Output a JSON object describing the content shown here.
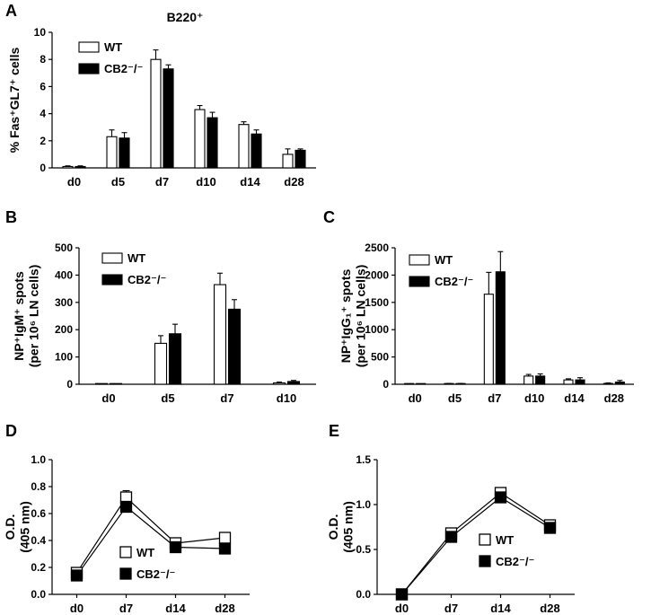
{
  "figure": {
    "panels": [
      "A",
      "B",
      "C",
      "D",
      "E"
    ]
  },
  "chart_data": [
    {
      "id": "A",
      "type": "bar",
      "title": "B220⁺",
      "ylabel": "% Fas⁺GL7⁺ cells",
      "xlabel": "",
      "categories": [
        "d0",
        "d5",
        "d7",
        "d10",
        "d14",
        "d28"
      ],
      "ylim": [
        0,
        10
      ],
      "yticks": [
        0,
        2,
        4,
        6,
        8,
        10
      ],
      "grid": false,
      "legend_position": "top-left",
      "series": [
        {
          "name": "WT",
          "fill": "#ffffff",
          "values": [
            0.1,
            2.3,
            8.0,
            4.3,
            3.2,
            1.0
          ],
          "errors": [
            0.05,
            0.5,
            0.7,
            0.3,
            0.2,
            0.4
          ]
        },
        {
          "name": "CB2⁻/⁻",
          "fill": "#000000",
          "values": [
            0.1,
            2.2,
            7.3,
            3.7,
            2.5,
            1.3
          ],
          "errors": [
            0.05,
            0.4,
            0.3,
            0.4,
            0.3,
            0.1
          ]
        }
      ]
    },
    {
      "id": "B",
      "type": "bar",
      "title": "",
      "ylabel": "NP⁺IgM⁺ spots (per 10⁶ LN cells)",
      "xlabel": "",
      "categories": [
        "d0",
        "d5",
        "d7",
        "d10"
      ],
      "ylim": [
        0,
        500
      ],
      "yticks": [
        0,
        100,
        200,
        300,
        400,
        500
      ],
      "grid": false,
      "legend_position": "top-left",
      "series": [
        {
          "name": "WT",
          "fill": "#ffffff",
          "values": [
            0,
            150,
            365,
            5
          ],
          "errors": [
            0,
            28,
            42,
            3
          ]
        },
        {
          "name": "CB2⁻/⁻",
          "fill": "#000000",
          "values": [
            0,
            185,
            275,
            10
          ],
          "errors": [
            0,
            35,
            35,
            4
          ]
        }
      ]
    },
    {
      "id": "C",
      "type": "bar",
      "title": "",
      "ylabel": "NP⁺IgG₁⁺ spots (per 10⁶ LN cells)",
      "xlabel": "",
      "categories": [
        "d0",
        "d5",
        "d7",
        "d10",
        "d14",
        "d28"
      ],
      "ylim": [
        0,
        2500
      ],
      "yticks": [
        0,
        500,
        1000,
        1500,
        2000,
        2500
      ],
      "grid": false,
      "legend_position": "top-left",
      "series": [
        {
          "name": "WT",
          "fill": "#ffffff",
          "values": [
            0,
            10,
            1650,
            150,
            80,
            15
          ],
          "errors": [
            0,
            5,
            400,
            30,
            20,
            10
          ]
        },
        {
          "name": "CB2⁻/⁻",
          "fill": "#000000",
          "values": [
            0,
            10,
            2060,
            150,
            80,
            40
          ],
          "errors": [
            0,
            5,
            370,
            40,
            40,
            30
          ]
        }
      ]
    },
    {
      "id": "D",
      "type": "line",
      "title": "",
      "ylabel": "O.D. (405 nm)",
      "xlabel": "",
      "categories": [
        "d0",
        "d7",
        "d14",
        "d28"
      ],
      "ylim": [
        0,
        1.0
      ],
      "yticks": [
        "0.0",
        "0.2",
        "0.4",
        "0.6",
        "0.8",
        "1.0"
      ],
      "grid": false,
      "legend_position": "bottom-center",
      "series": [
        {
          "name": "WT",
          "marker": "open-square",
          "values": [
            0.16,
            0.72,
            0.38,
            0.42
          ],
          "errors": [
            0.02,
            0.05,
            0.03,
            0.03
          ]
        },
        {
          "name": "CB2⁻/⁻",
          "marker": "filled-square",
          "values": [
            0.14,
            0.65,
            0.35,
            0.34
          ],
          "errors": [
            0.02,
            0.03,
            0.02,
            0.02
          ]
        }
      ]
    },
    {
      "id": "E",
      "type": "line",
      "title": "",
      "ylabel": "O.D. (405 nm)",
      "xlabel": "",
      "categories": [
        "d0",
        "d7",
        "d14",
        "d28"
      ],
      "ylim": [
        0,
        1.5
      ],
      "yticks": [
        "0.0",
        "0.5",
        "1.0",
        "1.5"
      ],
      "grid": false,
      "legend_position": "bottom-center",
      "series": [
        {
          "name": "WT",
          "marker": "open-square",
          "values": [
            0.0,
            0.68,
            1.13,
            0.77
          ],
          "errors": [
            0.0,
            0.03,
            0.04,
            0.03
          ]
        },
        {
          "name": "CB2⁻/⁻",
          "marker": "filled-square",
          "values": [
            0.0,
            0.64,
            1.08,
            0.74
          ],
          "errors": [
            0.0,
            0.03,
            0.05,
            0.03
          ]
        }
      ]
    }
  ]
}
